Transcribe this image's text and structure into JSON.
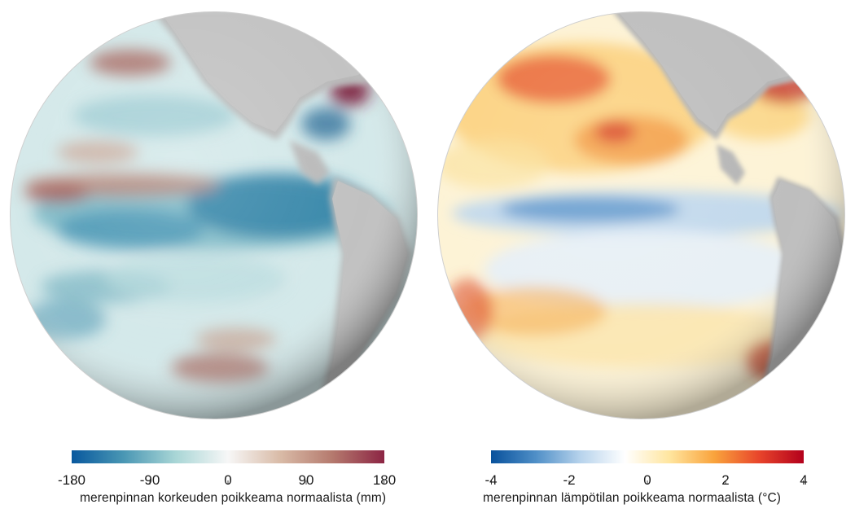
{
  "left_map": {
    "legend_title": "merenpinnan korkeuden poikkeama normaalista (mm)",
    "ticks": [
      "-180",
      "-90",
      "0",
      "90",
      "180"
    ],
    "tick_values": [
      -180,
      -90,
      0,
      90,
      180
    ],
    "range": [
      -180,
      180
    ],
    "colors": [
      "#08589e",
      "#4a97b4",
      "#a9d6d6",
      "#f7f7f7",
      "#d9bba7",
      "#b57a6e",
      "#8c2544"
    ]
  },
  "right_map": {
    "legend_title": "merenpinnan lämpötilan poikkeama normaalista (°C)",
    "ticks": [
      "-4",
      "-2",
      "0",
      "2",
      "4"
    ],
    "tick_values": [
      -4,
      -2,
      0,
      2,
      4
    ],
    "range": [
      -4,
      4
    ],
    "colors": [
      "#08519c",
      "#4f8fc7",
      "#b7d3ec",
      "#ffffff",
      "#ffe59e",
      "#f9a33c",
      "#e8452b",
      "#b3001c"
    ]
  }
}
